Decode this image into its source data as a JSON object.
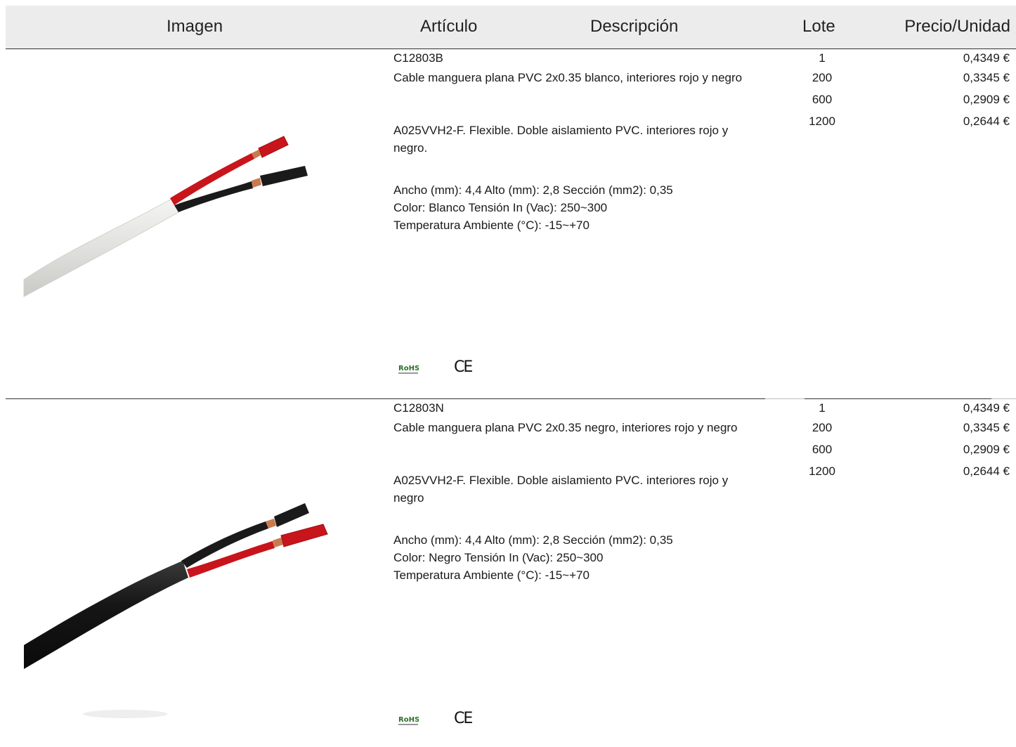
{
  "header": {
    "image": "Imagen",
    "article": "Artículo",
    "description": "Descripción",
    "lot": "Lote",
    "unit_price": "Precio/Unidad"
  },
  "products": [
    {
      "code": "C12803B",
      "title": "Cable manguera plana PVC 2x0.35 blanco, interiores rojo y negro",
      "spec": "A025VVH2-F. Flexible. Doble aislamiento PVC. interiores rojo y negro.",
      "specs_lines": [
        "Ancho (mm): 4,4 Alto (mm): 2,8 Sección (mm2): 0,35",
        "Color: Blanco Tensión In (Vac): 250~300",
        "Temperatura Ambiente (°C): -15~+70"
      ],
      "cert_rohs": "RoHS",
      "cert_ce": "CE",
      "lots": [
        "1",
        "200",
        "600",
        "1200"
      ],
      "prices": [
        "0,4349 €",
        "0,3345 €",
        "0,2909 €",
        "0,2644 €"
      ],
      "colors": {
        "jacket": "#e3e3e0",
        "red": "#c8151b",
        "black": "#1a1a1a",
        "copper": "#c97a4e"
      }
    },
    {
      "code": "C12803N",
      "title": "Cable manguera plana PVC 2x0.35 negro, interiores rojo y negro",
      "spec": "A025VVH2-F. Flexible. Doble aislamiento PVC. interiores rojo y negro",
      "specs_lines": [
        "Ancho (mm): 4,4 Alto (mm): 2,8 Sección (mm2): 0,35",
        "Color: Negro Tensión In (Vac): 250~300",
        "Temperatura Ambiente (°C): -15~+70"
      ],
      "cert_rohs": "RoHS",
      "cert_ce": "CE",
      "lots": [
        "1",
        "200",
        "600",
        "1200"
      ],
      "prices": [
        "0,4349 €",
        "0,3345 €",
        "0,2909 €",
        "0,2644 €"
      ],
      "colors": {
        "jacket": "#161616",
        "red": "#c8151b",
        "black": "#1a1a1a",
        "copper": "#c97a4e"
      }
    }
  ]
}
